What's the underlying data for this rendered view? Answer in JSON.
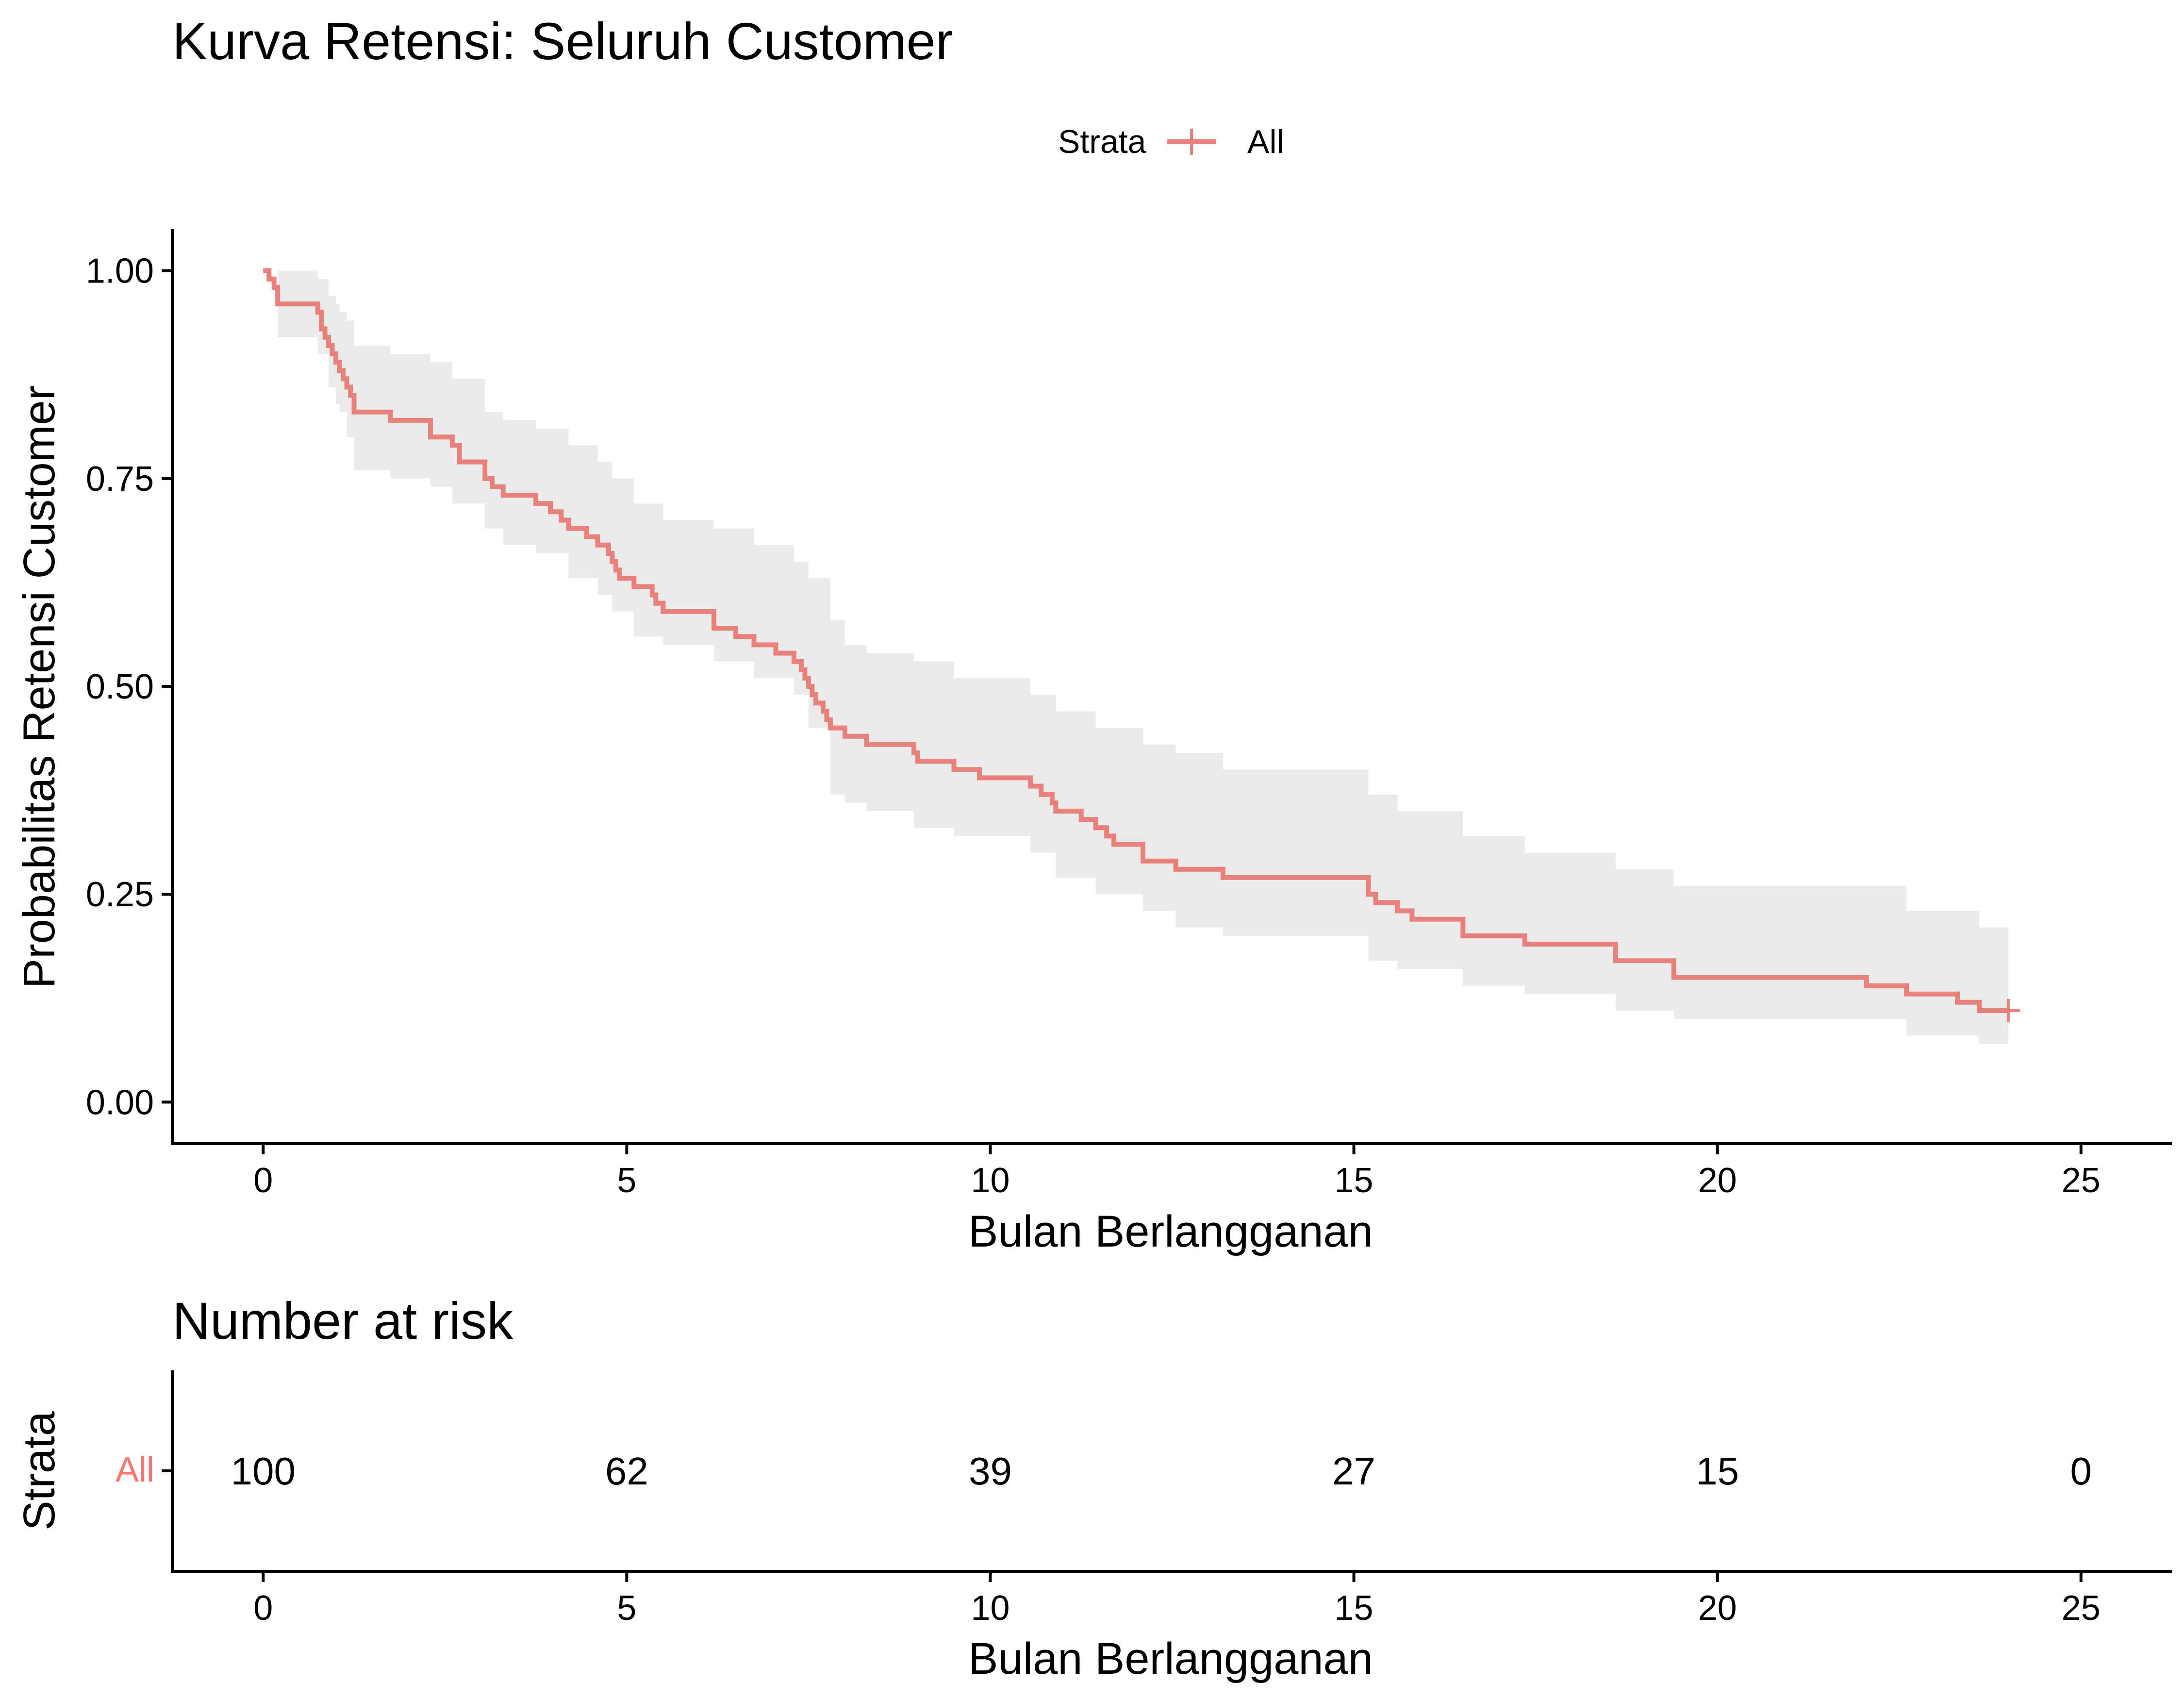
{
  "colors": {
    "series": "#E8817B",
    "series_label": "#F8766D",
    "ci_band": "#EBEBEB",
    "axis": "#000000"
  },
  "chart_data": [
    {
      "type": "step",
      "title": "Kurva Retensi: Seluruh Customer",
      "xlabel": "Bulan Berlangganan",
      "ylabel": "Probabilitas Retensi Customer",
      "xlim": [
        -1.25,
        26.25
      ],
      "ylim": [
        -0.05,
        1.05
      ],
      "x_ticks": [
        0,
        5,
        10,
        15,
        20,
        25
      ],
      "y_ticks": [
        0,
        0.25,
        0.5,
        0.75,
        1.0
      ],
      "y_tick_labels": [
        "0.00",
        "0.25",
        "0.50",
        "0.75",
        "1.00"
      ],
      "legend": {
        "title": "Strata",
        "entries": [
          "All"
        ],
        "position": "top"
      },
      "censor_marks": [
        {
          "x": 24.0,
          "y": 0.11
        }
      ],
      "series": [
        {
          "name": "All",
          "points": [
            [
              0,
              1.0
            ],
            [
              0.08,
              0.99
            ],
            [
              0.15,
              0.98
            ],
            [
              0.2,
              0.96
            ],
            [
              0.75,
              0.95
            ],
            [
              0.8,
              0.93
            ],
            [
              0.85,
              0.92
            ],
            [
              0.9,
              0.91
            ],
            [
              0.95,
              0.9
            ],
            [
              1.0,
              0.89
            ],
            [
              1.05,
              0.88
            ],
            [
              1.1,
              0.87
            ],
            [
              1.15,
              0.86
            ],
            [
              1.2,
              0.85
            ],
            [
              1.25,
              0.83
            ],
            [
              1.75,
              0.82
            ],
            [
              2.3,
              0.8
            ],
            [
              2.6,
              0.79
            ],
            [
              2.7,
              0.77
            ],
            [
              3.05,
              0.75
            ],
            [
              3.15,
              0.74
            ],
            [
              3.3,
              0.73
            ],
            [
              3.75,
              0.72
            ],
            [
              3.95,
              0.71
            ],
            [
              4.1,
              0.7
            ],
            [
              4.2,
              0.69
            ],
            [
              4.45,
              0.68
            ],
            [
              4.6,
              0.67
            ],
            [
              4.75,
              0.66
            ],
            [
              4.8,
              0.65
            ],
            [
              4.85,
              0.64
            ],
            [
              4.9,
              0.63
            ],
            [
              5.1,
              0.62
            ],
            [
              5.35,
              0.61
            ],
            [
              5.4,
              0.6
            ],
            [
              5.5,
              0.59
            ],
            [
              6.2,
              0.57
            ],
            [
              6.5,
              0.56
            ],
            [
              6.75,
              0.55
            ],
            [
              7.05,
              0.54
            ],
            [
              7.3,
              0.53
            ],
            [
              7.4,
              0.52
            ],
            [
              7.45,
              0.51
            ],
            [
              7.5,
              0.5
            ],
            [
              7.55,
              0.49
            ],
            [
              7.6,
              0.48
            ],
            [
              7.7,
              0.47
            ],
            [
              7.75,
              0.46
            ],
            [
              7.8,
              0.45
            ],
            [
              8.0,
              0.44
            ],
            [
              8.3,
              0.43
            ],
            [
              8.95,
              0.42
            ],
            [
              9.0,
              0.41
            ],
            [
              9.5,
              0.4
            ],
            [
              9.85,
              0.39
            ],
            [
              10.55,
              0.38
            ],
            [
              10.7,
              0.37
            ],
            [
              10.85,
              0.36
            ],
            [
              10.9,
              0.35
            ],
            [
              11.25,
              0.34
            ],
            [
              11.45,
              0.33
            ],
            [
              11.6,
              0.32
            ],
            [
              11.7,
              0.31
            ],
            [
              12.1,
              0.29
            ],
            [
              12.55,
              0.28
            ],
            [
              13.2,
              0.27
            ],
            [
              15.2,
              0.25
            ],
            [
              15.3,
              0.24
            ],
            [
              15.6,
              0.23
            ],
            [
              15.8,
              0.22
            ],
            [
              16.5,
              0.2
            ],
            [
              17.35,
              0.19
            ],
            [
              18.6,
              0.17
            ],
            [
              19.4,
              0.15
            ],
            [
              22.05,
              0.14
            ],
            [
              22.6,
              0.13
            ],
            [
              23.3,
              0.12
            ],
            [
              23.6,
              0.11
            ],
            [
              24.0,
              0.11
            ]
          ],
          "ci_band": [
            [
              0,
              1.0,
              1.0
            ],
            [
              0.2,
              1.0,
              0.92
            ],
            [
              0.75,
              0.99,
              0.9
            ],
            [
              0.9,
              0.97,
              0.86
            ],
            [
              1.0,
              0.96,
              0.84
            ],
            [
              1.05,
              0.95,
              0.83
            ],
            [
              1.15,
              0.94,
              0.8
            ],
            [
              1.25,
              0.91,
              0.76
            ],
            [
              1.75,
              0.9,
              0.75
            ],
            [
              2.3,
              0.89,
              0.74
            ],
            [
              2.6,
              0.87,
              0.72
            ],
            [
              3.05,
              0.83,
              0.69
            ],
            [
              3.3,
              0.82,
              0.67
            ],
            [
              3.75,
              0.81,
              0.66
            ],
            [
              4.2,
              0.79,
              0.63
            ],
            [
              4.6,
              0.77,
              0.61
            ],
            [
              4.8,
              0.75,
              0.59
            ],
            [
              5.1,
              0.72,
              0.56
            ],
            [
              5.5,
              0.7,
              0.55
            ],
            [
              6.2,
              0.69,
              0.53
            ],
            [
              6.75,
              0.67,
              0.51
            ],
            [
              7.3,
              0.65,
              0.49
            ],
            [
              7.5,
              0.63,
              0.45
            ],
            [
              7.8,
              0.58,
              0.37
            ],
            [
              8.0,
              0.55,
              0.36
            ],
            [
              8.3,
              0.54,
              0.35
            ],
            [
              8.95,
              0.53,
              0.33
            ],
            [
              9.5,
              0.51,
              0.32
            ],
            [
              10.55,
              0.49,
              0.3
            ],
            [
              10.9,
              0.47,
              0.27
            ],
            [
              11.45,
              0.45,
              0.25
            ],
            [
              12.1,
              0.43,
              0.23
            ],
            [
              12.55,
              0.42,
              0.21
            ],
            [
              13.2,
              0.4,
              0.2
            ],
            [
              15.2,
              0.37,
              0.17
            ],
            [
              15.6,
              0.35,
              0.16
            ],
            [
              16.5,
              0.32,
              0.14
            ],
            [
              17.35,
              0.3,
              0.13
            ],
            [
              18.6,
              0.28,
              0.11
            ],
            [
              19.4,
              0.26,
              0.1
            ],
            [
              22.6,
              0.23,
              0.08
            ],
            [
              23.6,
              0.21,
              0.07
            ],
            [
              24.0,
              0.21,
              0.07
            ]
          ]
        }
      ]
    },
    {
      "type": "table",
      "title": "Number at risk",
      "xlabel": "Bulan Berlangganan",
      "ylabel": "Strata",
      "xlim": [
        -1.25,
        26.25
      ],
      "x_ticks": [
        0,
        5,
        10,
        15,
        20,
        25
      ],
      "rows": [
        {
          "label": "All",
          "times": [
            0,
            5,
            10,
            15,
            20,
            25
          ],
          "values": [
            "100",
            "62",
            "39",
            "27",
            "15",
            "0"
          ]
        }
      ]
    }
  ]
}
